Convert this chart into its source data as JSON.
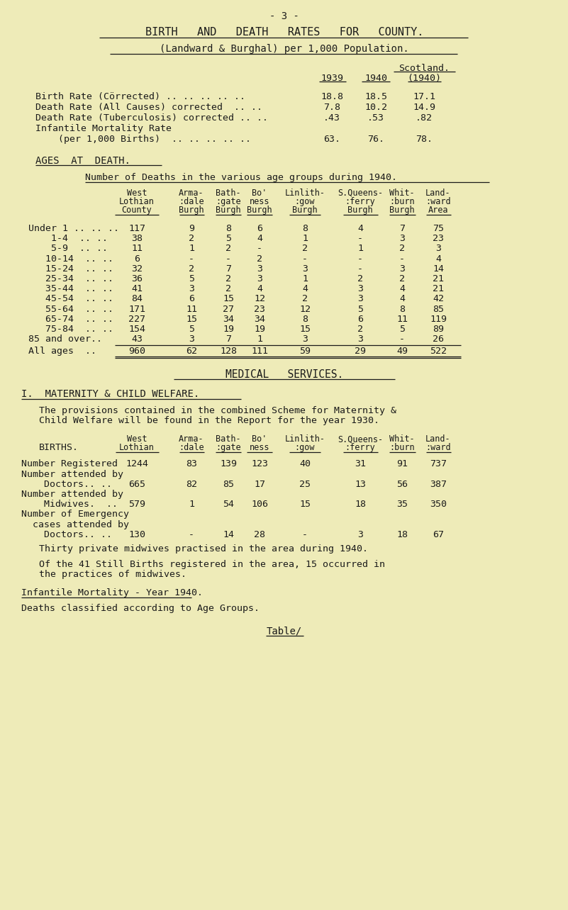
{
  "bg_color": "#eeebb8",
  "text_color": "#1a1a1a",
  "page_number": "- 3 -",
  "title1": "BIRTH   AND   DEATH   RATES   FOR   COUNTY.",
  "title2": "(Landward & Burghal) per 1,000 Population.",
  "ages_title": "AGES  AT  DEATH.",
  "ages_subtitle": "Number of Deaths in the various age groups during 1940.",
  "ages_col_headers": [
    [
      "West",
      "Lothian",
      "County"
    ],
    [
      "Arma-",
      ":dale",
      "Burgh"
    ],
    [
      "Bath-",
      ":gate",
      "Burgh"
    ],
    [
      "Bo'",
      "ness",
      "Burgh"
    ],
    [
      "Linlith-",
      ":gow",
      "Burgh"
    ],
    [
      "S.Queens-",
      ":ferry",
      "Burgh"
    ],
    [
      "Whit-",
      ":burn",
      "Burgh"
    ],
    [
      "Land-",
      ":ward",
      "Area"
    ]
  ],
  "ages_rows": [
    [
      "Under 1 .. .. ..",
      "117",
      "9",
      "8",
      "6",
      "8",
      "4",
      "7",
      "75"
    ],
    [
      "    1-4  .. ..",
      "38",
      "2",
      "5",
      "4",
      "1",
      "-",
      "3",
      "23"
    ],
    [
      "    5-9  .. ..",
      "11",
      "1",
      "2",
      "-",
      "2",
      "1",
      "2",
      "3"
    ],
    [
      "   10-14  .. ..",
      "6",
      "-",
      "-",
      "2",
      "-",
      "-",
      "-",
      "4"
    ],
    [
      "   15-24  .. ..",
      "32",
      "2",
      "7",
      "3",
      "3",
      "-",
      "3",
      "14"
    ],
    [
      "   25-34  .. ..",
      "36",
      "5",
      "2",
      "3",
      "1",
      "2",
      "2",
      "21"
    ],
    [
      "   35-44  .. ..",
      "41",
      "3",
      "2",
      "4",
      "4",
      "3",
      "4",
      "21"
    ],
    [
      "   45-54  .. ..",
      "84",
      "6",
      "15",
      "12",
      "2",
      "3",
      "4",
      "42"
    ],
    [
      "   55-64  .. ..",
      "171",
      "11",
      "27",
      "23",
      "12",
      "5",
      "8",
      "85"
    ],
    [
      "   65-74  .. ..",
      "227",
      "15",
      "34",
      "34",
      "8",
      "6",
      "11",
      "119"
    ],
    [
      "   75-84  .. ..",
      "154",
      "5",
      "19",
      "19",
      "15",
      "2",
      "5",
      "89"
    ],
    [
      "85 and over..",
      "43",
      "3",
      "7",
      "1",
      "3",
      "3",
      "-",
      "26"
    ]
  ],
  "all_ages_row": [
    "All ages  ..",
    "960",
    "62",
    "128",
    "111",
    "59",
    "29",
    "49",
    "522"
  ],
  "medical_title": "MEDICAL   SERVICES.",
  "welfare_title": "I.  MATERNITY & CHILD WELFARE.",
  "welfare_text1": "The provisions contained in the combined Scheme for Maternity &",
  "welfare_text2": "Child Welfare will be found in the Report for the year 1930.",
  "births_label": "BIRTHS.",
  "births_col_headers": [
    [
      "West",
      "Lothian"
    ],
    [
      "Arma-",
      ":dale"
    ],
    [
      "Bath-",
      ":gate"
    ],
    [
      "Bo'",
      "ness"
    ],
    [
      "Linlith-",
      ":gow"
    ],
    [
      "S.Queens-",
      ":ferry"
    ],
    [
      "Whit-",
      ":burn"
    ],
    [
      "Land-",
      ":ward"
    ]
  ],
  "births_rows": [
    [
      "Number Registered",
      "1244",
      "83",
      "139",
      "123",
      "40",
      "31",
      "91",
      "737"
    ],
    [
      "Number attended by",
      "",
      "",
      "",
      "",
      "",
      "",
      "",
      ""
    ],
    [
      "    Doctors.. ..",
      "665",
      "82",
      "85",
      "17",
      "25",
      "13",
      "56",
      "387"
    ],
    [
      "Number attended by",
      "",
      "",
      "",
      "",
      "",
      "",
      "",
      ""
    ],
    [
      "    Midwives.  ..",
      "579",
      "1",
      "54",
      "106",
      "15",
      "18",
      "35",
      "350"
    ],
    [
      "Number of Emergency",
      "",
      "",
      "",
      "",
      "",
      "",
      "",
      ""
    ],
    [
      "  cases attended by",
      "",
      "",
      "",
      "",
      "",
      "",
      "",
      ""
    ],
    [
      "    Doctors.. ..",
      "130",
      "-",
      "14",
      "28",
      "-",
      "3",
      "18",
      "67"
    ]
  ],
  "note1": "Thirty private midwives practised in the area during 1940.",
  "note2": "Of the 41 Still Births registered in the area, 15 occurred in",
  "note3": "the practices of midwives.",
  "infantile_title": "Infantile Mortality - Year 1940.",
  "deaths_text": "Deaths classified according to Age Groups.",
  "table_ref": "Table/"
}
